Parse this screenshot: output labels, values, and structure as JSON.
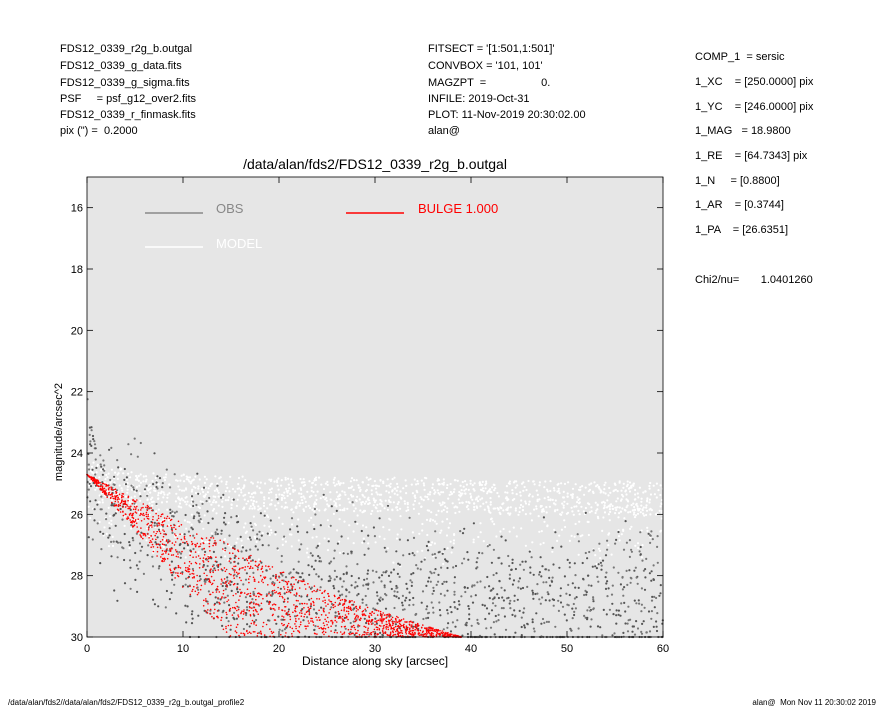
{
  "header": {
    "left": [
      "FDS12_0339_r2g_b.outgal",
      "FDS12_0339_g_data.fits",
      "FDS12_0339_g_sigma.fits",
      "PSF     = psf_g12_over2.fits",
      "FDS12_0339_r_finmask.fits",
      "pix (\") =  0.2000"
    ],
    "middle": [
      "FITSECT = '[1:501,1:501]'",
      "CONVBOX = '101, 101'",
      "MAGZPT  =                  0.",
      "INFILE: 2019-Oct-31",
      "PLOT: 11-Nov-2019 20:30:02.00",
      "alan@"
    ],
    "right": [
      "COMP_1  = sersic",
      "1_XC    = [250.0000] pix",
      "1_YC    = [246.0000] pix",
      "1_MAG   = 18.9800",
      "1_RE    = [64.7343] pix",
      "1_N     = [0.8800]",
      "1_AR    = [0.3744]",
      "1_PA    = [26.6351]"
    ],
    "chi2": "Chi2/nu=       1.0401260"
  },
  "footer": {
    "left": "/data/alan/fds2//data/alan/fds2/FDS12_0339_r2g_b.outgal_profile2",
    "right": "alan@  Mon Nov 11 20:30:02 2019"
  },
  "chart_data": {
    "type": "scatter",
    "title": "/data/alan/fds2/FDS12_0339_r2g_b.outgal",
    "xlabel": "Distance along sky [arcsec]",
    "ylabel": "magnitude/arcsec^2",
    "xlim": [
      0,
      60
    ],
    "ylim": [
      30,
      15
    ],
    "y_inverted": true,
    "xticks": [
      0,
      10,
      20,
      30,
      40,
      50,
      60
    ],
    "yticks": [
      16,
      18,
      20,
      22,
      24,
      26,
      28,
      30
    ],
    "background": "#e6e6e6",
    "legend": [
      {
        "label": "OBS",
        "color": "#888888"
      },
      {
        "label": "BULGE  1.000",
        "color": "#ff0000"
      },
      {
        "label": "MODEL",
        "color": "#ffffff"
      }
    ],
    "series": [
      {
        "name": "OBS",
        "color": "#555555",
        "x": [
          0.5,
          2,
          4,
          6,
          8,
          10,
          12,
          15,
          18,
          20,
          25,
          30,
          35,
          40,
          45,
          50,
          55,
          60
        ],
        "y": [
          24.7,
          25.5,
          26.0,
          26.4,
          26.8,
          27.2,
          27.5,
          27.9,
          28.2,
          28.4,
          28.6,
          28.8,
          28.9,
          29.0,
          28.9,
          28.9,
          28.8,
          28.8
        ]
      },
      {
        "name": "MODEL",
        "color": "#ffffff",
        "x": [
          0.5,
          5,
          10,
          15,
          20,
          25,
          30,
          35,
          40,
          45,
          50,
          55,
          60
        ],
        "y": [
          24.5,
          24.8,
          24.9,
          24.9,
          25.0,
          25.0,
          25.0,
          25.0,
          25.1,
          25.1,
          25.1,
          25.1,
          25.2
        ]
      },
      {
        "name": "BULGE  1.000",
        "color": "#ff0000",
        "x": [
          0,
          5,
          10,
          15,
          20,
          25,
          30,
          35,
          39
        ],
        "y_bright": [
          24.7,
          25.5,
          26.3,
          27.0,
          27.8,
          28.5,
          29.1,
          29.6,
          30.0
        ],
        "y_faint": [
          24.7,
          26.5,
          28.4,
          30.0,
          30.0,
          30.0,
          30.0,
          30.0,
          30.0
        ]
      }
    ]
  }
}
